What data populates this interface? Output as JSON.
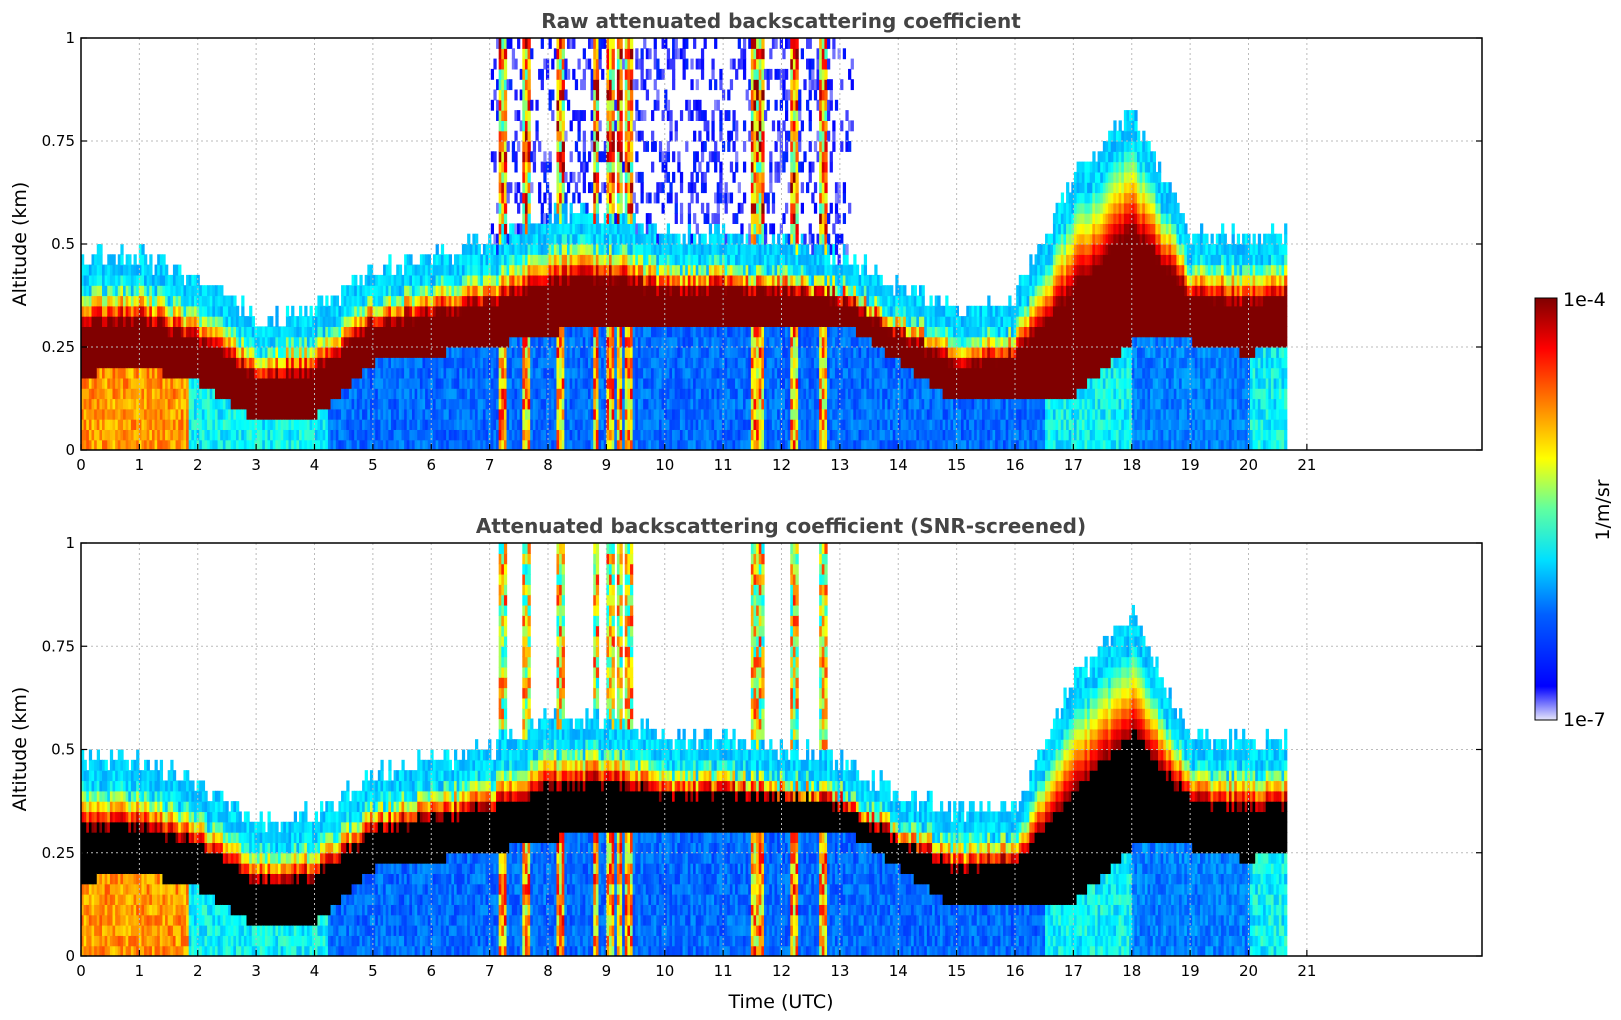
{
  "chart_data": [
    {
      "type": "heatmap",
      "title": "Raw attenuated backscattering coefficient",
      "xlabel": "",
      "ylabel": "Altitude (km)",
      "xlim": [
        0,
        24
      ],
      "ylim": [
        0,
        1
      ],
      "xticks": [
        "0",
        "1",
        "2",
        "3",
        "4",
        "5",
        "6",
        "7",
        "8",
        "9",
        "10",
        "11",
        "12",
        "13",
        "14",
        "15",
        "16",
        "17",
        "18",
        "19",
        "20",
        "21"
      ],
      "yticks": [
        "0",
        "0.25",
        "0.5",
        "0.75",
        "1"
      ],
      "grid": true,
      "data_end_hour": 20.65,
      "layer": {
        "time": [
          0,
          1,
          2,
          3,
          4,
          5,
          6,
          7,
          8,
          9,
          10,
          11,
          12,
          13,
          14,
          15,
          16,
          17,
          18,
          19,
          20,
          20.65
        ],
        "base": [
          0.17,
          0.19,
          0.15,
          0.06,
          0.07,
          0.2,
          0.22,
          0.24,
          0.27,
          0.3,
          0.28,
          0.3,
          0.3,
          0.3,
          0.2,
          0.1,
          0.12,
          0.12,
          0.25,
          0.25,
          0.22,
          0.25
        ],
        "top": [
          0.4,
          0.4,
          0.34,
          0.25,
          0.27,
          0.37,
          0.4,
          0.43,
          0.5,
          0.5,
          0.45,
          0.45,
          0.43,
          0.4,
          0.32,
          0.28,
          0.3,
          0.6,
          0.75,
          0.45,
          0.45,
          0.45
        ]
      },
      "vertical_streaks": [
        7.2,
        7.6,
        8.2,
        8.8,
        9.05,
        9.2,
        9.35,
        11.5,
        11.6,
        12.2,
        12.7
      ],
      "sparse_noise_region": [
        7.0,
        13.2
      ]
    },
    {
      "type": "heatmap",
      "title": "Attenuated backscattering coefficient (SNR-screened)",
      "xlabel": "Time (UTC)",
      "ylabel": "Altitude (km)",
      "xlim": [
        0,
        24
      ],
      "ylim": [
        0,
        1
      ],
      "xticks": [
        "0",
        "1",
        "2",
        "3",
        "4",
        "5",
        "6",
        "7",
        "8",
        "9",
        "10",
        "11",
        "12",
        "13",
        "14",
        "15",
        "16",
        "17",
        "18",
        "19",
        "20",
        "21"
      ],
      "yticks": [
        "0",
        "0.25",
        "0.5",
        "0.75",
        "1"
      ],
      "grid": true,
      "data_end_hour": 20.65,
      "screened_core_color": "#000000"
    }
  ],
  "colorbar": {
    "label": "1/m/sr",
    "max_label": "1e-4",
    "min_label": "1e-7",
    "scale": "log",
    "colormap": [
      "#e6e6fa",
      "#0000ff",
      "#0080ff",
      "#00ffff",
      "#80ff80",
      "#ffff00",
      "#ff8000",
      "#ff0000",
      "#800000"
    ]
  }
}
